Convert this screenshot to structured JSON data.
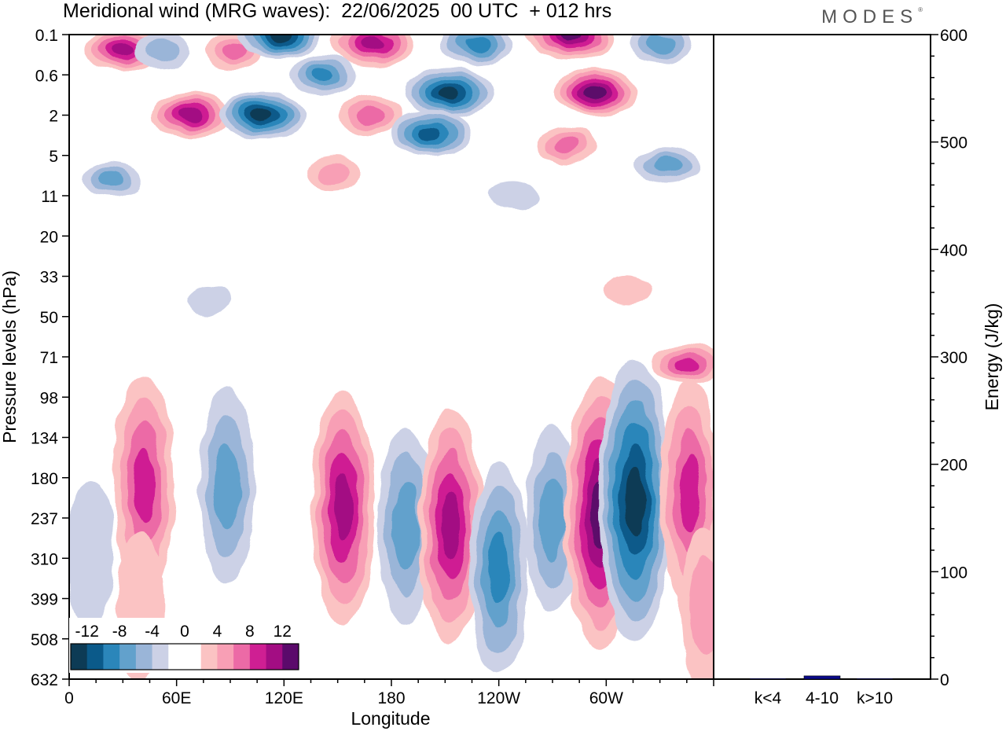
{
  "title": "Meridional wind (MRG waves):  22/06/2025  00 UTC  + 012 hrs",
  "logo": "MODES",
  "logo_mark": "®",
  "colors": {
    "neg": [
      "#0d3b55",
      "#0b5a8a",
      "#2b86ba",
      "#62a1cc",
      "#9ab5d8",
      "#ccd1e6"
    ],
    "pos": [
      "#fbc3c3",
      "#f89fb5",
      "#ec6aa6",
      "#cf1f93",
      "#a30d83",
      "#5b0a6b"
    ]
  },
  "chart_data": [
    {
      "type": "heatmap",
      "title": "Meridional wind (MRG waves):  22/06/2025  00 UTC  + 012 hrs",
      "xlabel": "Longitude",
      "ylabel": "Pressure levels (hPa)",
      "x_ticks": [
        "0",
        "60E",
        "120E",
        "180",
        "120W",
        "60W"
      ],
      "x_tick_degrees": [
        0,
        60,
        120,
        180,
        240,
        300
      ],
      "x_range_degrees": [
        0,
        360
      ],
      "y_ticks": [
        "0.1",
        "0.6",
        "2",
        "5",
        "11",
        "20",
        "33",
        "50",
        "71",
        "98",
        "134",
        "180",
        "237",
        "310",
        "399",
        "508",
        "632"
      ],
      "colorbar": {
        "levels": [
          -12,
          -10,
          -8,
          -6,
          -4,
          -2,
          0,
          2,
          4,
          6,
          8,
          10,
          12
        ],
        "labels": [
          "-12",
          "-8",
          "-4",
          "0",
          "4",
          "8",
          "12"
        ],
        "placement": "bottom-left"
      },
      "features": [
        {
          "lon": 30,
          "level": 0.2,
          "value": 10
        },
        {
          "lon": 52,
          "level": 0.2,
          "value": -5
        },
        {
          "lon": 92,
          "level": 0.2,
          "value": 6
        },
        {
          "lon": 118,
          "level": 0.1,
          "value": -12
        },
        {
          "lon": 170,
          "level": 0.15,
          "value": 11
        },
        {
          "lon": 228,
          "level": 0.15,
          "value": -9
        },
        {
          "lon": 280,
          "level": 0.1,
          "value": 13
        },
        {
          "lon": 330,
          "level": 0.15,
          "value": -7
        },
        {
          "lon": 68,
          "level": 2,
          "value": 11
        },
        {
          "lon": 108,
          "level": 2,
          "value": -12
        },
        {
          "lon": 142,
          "level": 0.6,
          "value": -8
        },
        {
          "lon": 212,
          "level": 1,
          "value": -13
        },
        {
          "lon": 294,
          "level": 1,
          "value": 12
        },
        {
          "lon": 168,
          "level": 2,
          "value": 7
        },
        {
          "lon": 202,
          "level": 3,
          "value": -11
        },
        {
          "lon": 278,
          "level": 4,
          "value": 6
        },
        {
          "lon": 148,
          "level": 7,
          "value": 5
        },
        {
          "lon": 24,
          "level": 8,
          "value": -6
        },
        {
          "lon": 334,
          "level": 6,
          "value": -7
        },
        {
          "lon": 248,
          "level": 11,
          "value": -3
        },
        {
          "lon": 312,
          "level": 38,
          "value": 3
        },
        {
          "lon": 78,
          "level": 42,
          "value": -2
        },
        {
          "lon": 345,
          "level": 75,
          "value": 8
        },
        {
          "lon": 42,
          "level": 190,
          "value": 9
        },
        {
          "lon": 88,
          "level": 190,
          "value": -7
        },
        {
          "lon": 153,
          "level": 220,
          "value": 10
        },
        {
          "lon": 188,
          "level": 250,
          "value": -7
        },
        {
          "lon": 213,
          "level": 250,
          "value": 10
        },
        {
          "lon": 240,
          "level": 330,
          "value": -8
        },
        {
          "lon": 270,
          "level": 240,
          "value": -6
        },
        {
          "lon": 296,
          "level": 230,
          "value": 13
        },
        {
          "lon": 316,
          "level": 210,
          "value": -14
        },
        {
          "lon": 347,
          "level": 200,
          "value": 9
        },
        {
          "lon": 12,
          "level": 300,
          "value": -3
        },
        {
          "lon": 40,
          "level": 420,
          "value": 3
        },
        {
          "lon": 355,
          "level": 420,
          "value": 4
        }
      ]
    },
    {
      "type": "bar",
      "categories": [
        "k<4",
        "4-10",
        "k>10"
      ],
      "values": [
        0.5,
        3,
        0.5
      ],
      "ylabel": "Energy (J/kg)",
      "ylim": [
        0,
        600
      ],
      "y_ticks": [
        "0",
        "100",
        "200",
        "300",
        "400",
        "500",
        "600"
      ],
      "bar_color": "#0a0a8a"
    }
  ]
}
